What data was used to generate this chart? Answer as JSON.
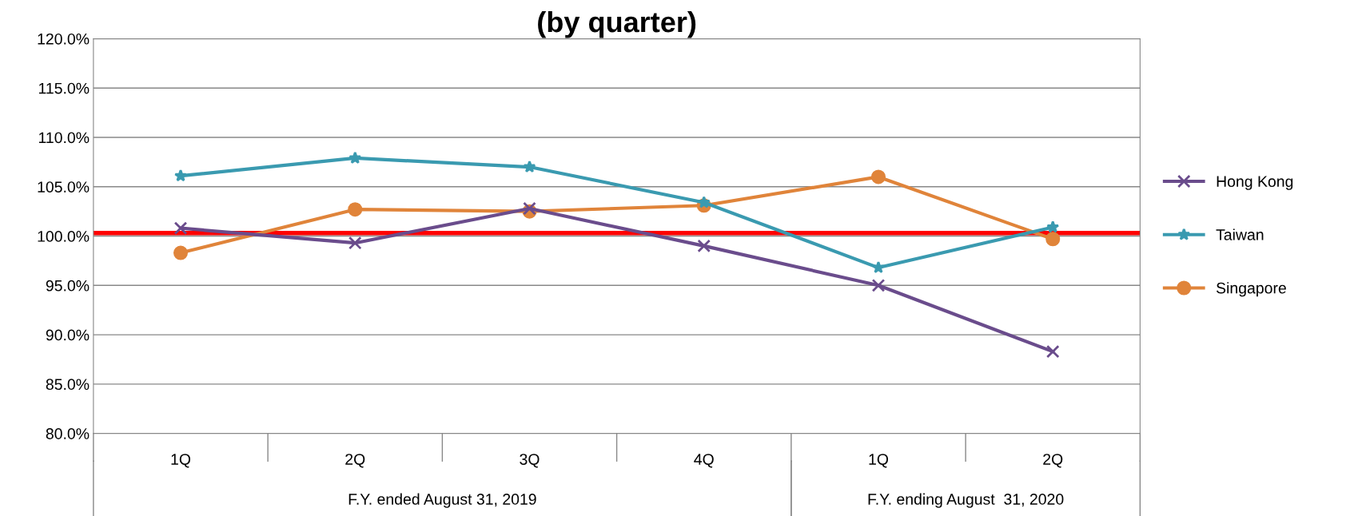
{
  "chart_data": {
    "type": "line",
    "title": "(by quarter)",
    "categories": [
      "1Q",
      "2Q",
      "3Q",
      "4Q",
      "1Q",
      "2Q"
    ],
    "series": [
      {
        "name": "Hong Kong",
        "color": "#6a4c8c",
        "marker": "cross",
        "values": [
          100.8,
          99.3,
          102.8,
          99.0,
          95.0,
          88.3
        ]
      },
      {
        "name": "Taiwan",
        "color": "#3a9ab0",
        "marker": "star",
        "values": [
          106.1,
          107.9,
          107.0,
          103.4,
          96.8,
          100.9
        ]
      },
      {
        "name": "Singapore",
        "color": "#e0843a",
        "marker": "circle",
        "values": [
          98.3,
          102.7,
          102.5,
          103.1,
          106.0,
          99.7
        ]
      }
    ],
    "ylim": [
      80,
      120
    ],
    "yticks": [
      {
        "value": 80,
        "label": "80.0%"
      },
      {
        "value": 85,
        "label": "85.0%"
      },
      {
        "value": 90,
        "label": "90.0%"
      },
      {
        "value": 95,
        "label": "95.0%"
      },
      {
        "value": 100,
        "label": "100.0%"
      },
      {
        "value": 105,
        "label": "105.0%"
      },
      {
        "value": 110,
        "label": "110.0%"
      },
      {
        "value": 115,
        "label": "115.0%"
      },
      {
        "value": 120,
        "label": "120.0%"
      }
    ],
    "ref_lines": [
      {
        "axis": "y",
        "value": 100.3,
        "color": "#ff0000"
      }
    ],
    "annotations": [
      "F.Y. ended August 31, 2019",
      "F.Y. ending August  31, 2020"
    ],
    "grid": "y",
    "legend": "right"
  }
}
